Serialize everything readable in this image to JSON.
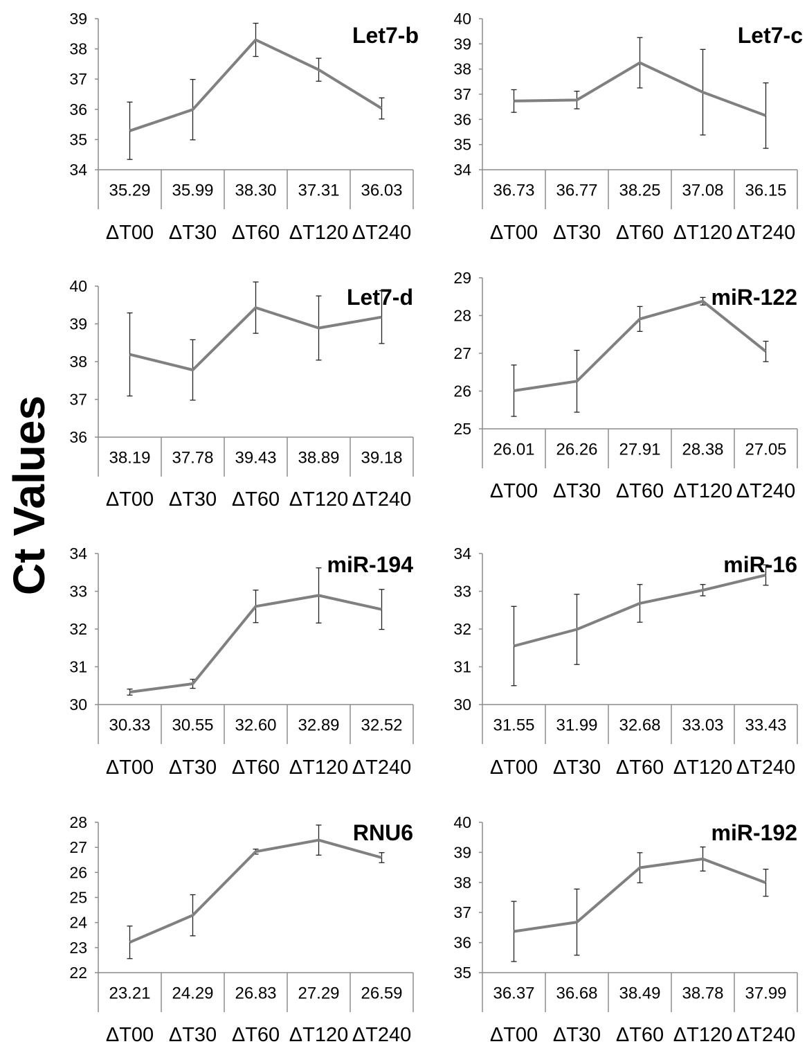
{
  "figure": {
    "ylabel": "Ct Values"
  },
  "chart_data": [
    {
      "type": "line",
      "title": "Let7-b",
      "categories": [
        "ΔT00",
        "ΔT30",
        "ΔT60",
        "ΔT120",
        "ΔT240"
      ],
      "values": [
        35.29,
        35.99,
        38.3,
        37.31,
        36.03
      ],
      "value_labels": [
        "35.29",
        "35.99",
        "38.30",
        "37.31",
        "36.03"
      ],
      "error": [
        0.95,
        1.0,
        0.55,
        0.38,
        0.35
      ],
      "yticks": [
        34,
        35,
        36,
        37,
        38,
        39
      ],
      "ylim": [
        34,
        39
      ],
      "line_color": "#808080"
    },
    {
      "type": "line",
      "title": "Let7-c",
      "categories": [
        "ΔT00",
        "ΔT30",
        "ΔT60",
        "ΔT120",
        "ΔT240"
      ],
      "values": [
        36.73,
        36.77,
        38.25,
        37.08,
        36.15
      ],
      "value_labels": [
        "36.73",
        "36.77",
        "38.25",
        "37.08",
        "36.15"
      ],
      "error": [
        0.45,
        0.35,
        1.0,
        1.7,
        1.3
      ],
      "yticks": [
        34,
        35,
        36,
        37,
        38,
        39,
        40
      ],
      "ylim": [
        34,
        40
      ],
      "line_color": "#808080"
    },
    {
      "type": "line",
      "title": "Let7-d",
      "categories": [
        "ΔT00",
        "ΔT30",
        "ΔT60",
        "ΔT120",
        "ΔT240"
      ],
      "values": [
        38.19,
        37.78,
        39.43,
        38.89,
        39.18
      ],
      "value_labels": [
        "38.19",
        "37.78",
        "39.43",
        "38.89",
        "39.18"
      ],
      "error": [
        1.1,
        0.8,
        0.68,
        0.85,
        0.7
      ],
      "yticks": [
        36,
        37,
        38,
        39,
        40
      ],
      "ylim": [
        36,
        40
      ],
      "line_color": "#808080"
    },
    {
      "type": "line",
      "title": "miR-122",
      "categories": [
        "ΔT00",
        "ΔT30",
        "ΔT60",
        "ΔT120",
        "ΔT240"
      ],
      "values": [
        26.01,
        26.26,
        27.91,
        28.38,
        27.05
      ],
      "value_labels": [
        "26.01",
        "26.26",
        "27.91",
        "28.38",
        "27.05"
      ],
      "error": [
        0.68,
        0.82,
        0.33,
        0.1,
        0.27
      ],
      "yticks": [
        25,
        26,
        27,
        28,
        29
      ],
      "ylim": [
        25,
        29
      ],
      "line_color": "#808080"
    },
    {
      "type": "line",
      "title": "miR-194",
      "categories": [
        "ΔT00",
        "ΔT30",
        "ΔT60",
        "ΔT120",
        "ΔT240"
      ],
      "values": [
        30.33,
        30.55,
        32.6,
        32.89,
        32.52
      ],
      "value_labels": [
        "30.33",
        "30.55",
        "32.60",
        "32.89",
        "32.52"
      ],
      "error": [
        0.08,
        0.12,
        0.43,
        0.73,
        0.53
      ],
      "yticks": [
        30,
        31,
        32,
        33,
        34
      ],
      "ylim": [
        30,
        34
      ],
      "line_color": "#808080"
    },
    {
      "type": "line",
      "title": "miR-16",
      "categories": [
        "ΔT00",
        "ΔT30",
        "ΔT60",
        "ΔT120",
        "ΔT240"
      ],
      "values": [
        31.55,
        31.99,
        32.68,
        33.03,
        33.43
      ],
      "value_labels": [
        "31.55",
        "31.99",
        "32.68",
        "33.03",
        "33.43"
      ],
      "error": [
        1.05,
        0.93,
        0.5,
        0.15,
        0.27
      ],
      "yticks": [
        30,
        31,
        32,
        33,
        34
      ],
      "ylim": [
        30,
        34
      ],
      "line_color": "#808080"
    },
    {
      "type": "line",
      "title": "RNU6",
      "categories": [
        "ΔT00",
        "ΔT30",
        "ΔT60",
        "ΔT120",
        "ΔT240"
      ],
      "values": [
        23.21,
        24.29,
        26.83,
        27.29,
        26.59
      ],
      "value_labels": [
        "23.21",
        "24.29",
        "26.83",
        "27.29",
        "26.59"
      ],
      "error": [
        0.65,
        0.82,
        0.1,
        0.6,
        0.2
      ],
      "yticks": [
        22,
        23,
        24,
        25,
        26,
        27,
        28
      ],
      "ylim": [
        22,
        28
      ],
      "line_color": "#808080"
    },
    {
      "type": "line",
      "title": "miR-192",
      "categories": [
        "ΔT00",
        "ΔT30",
        "ΔT60",
        "ΔT120",
        "ΔT240"
      ],
      "values": [
        36.37,
        36.68,
        38.49,
        38.78,
        37.99
      ],
      "value_labels": [
        "36.37",
        "36.68",
        "38.49",
        "38.78",
        "37.99"
      ],
      "error": [
        1.0,
        1.1,
        0.5,
        0.4,
        0.45
      ],
      "yticks": [
        35,
        36,
        37,
        38,
        39,
        40
      ],
      "ylim": [
        35,
        40
      ],
      "line_color": "#808080"
    }
  ]
}
